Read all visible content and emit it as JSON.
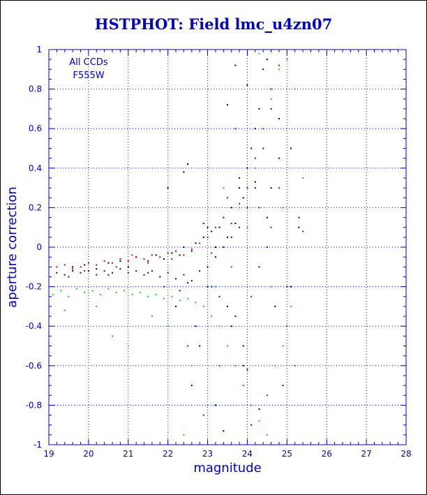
{
  "chart_data": {
    "type": "scatter",
    "title": "HSTPHOT: Field lmc_u4zn07",
    "xlabel": "magnitude",
    "ylabel": "aperture correction",
    "xlim": [
      19,
      28
    ],
    "ylim": [
      -1,
      1
    ],
    "x_ticks": [
      19,
      20,
      21,
      22,
      23,
      24,
      25,
      26,
      27,
      28
    ],
    "y_ticks": [
      -1,
      -0.8,
      -0.6,
      -0.4,
      -0.2,
      0,
      0.2,
      0.4,
      0.6,
      0.8,
      1
    ],
    "x_tick_labels": [
      "19",
      "20",
      "21",
      "22",
      "23",
      "24",
      "25",
      "26",
      "27",
      "28"
    ],
    "y_tick_labels": [
      "-1",
      "-0.8",
      "-0.6",
      "-0.4",
      "-0.2",
      "0",
      "0.2",
      "0.4",
      "0.6",
      "0.8",
      "1"
    ],
    "grid": true,
    "annotation": [
      "All CCDs",
      "F555W"
    ],
    "colors": {
      "axis": "#0000cc",
      "grid": "#0000cc",
      "title": "#0000cc",
      "series": [
        "#000000",
        "#cc0000",
        "#0000cc",
        "#00dd00"
      ]
    },
    "series": [
      {
        "color": "#000000",
        "points": [
          [
            19.6,
            -0.1
          ],
          [
            19.9,
            -0.09
          ],
          [
            20.2,
            -0.11
          ],
          [
            20.5,
            -0.08
          ],
          [
            20.8,
            -0.07
          ],
          [
            21.0,
            -0.1
          ],
          [
            21.2,
            -0.05
          ],
          [
            21.5,
            -0.07
          ],
          [
            21.7,
            -0.04
          ],
          [
            21.9,
            -0.06
          ],
          [
            22.1,
            -0.03
          ],
          [
            22.3,
            -0.04
          ],
          [
            22.4,
            0.0
          ],
          [
            22.6,
            -0.02
          ],
          [
            22.7,
            0.02
          ],
          [
            22.9,
            0.05
          ],
          [
            23.0,
            0.1
          ],
          [
            23.1,
            0.08
          ],
          [
            23.2,
            0.0
          ],
          [
            23.3,
            0.1
          ],
          [
            23.4,
            0.15
          ],
          [
            23.5,
            0.05
          ],
          [
            23.6,
            0.2
          ],
          [
            23.7,
            0.12
          ],
          [
            23.8,
            0.3
          ],
          [
            23.9,
            0.25
          ],
          [
            24.0,
            0.4
          ],
          [
            24.1,
            0.5
          ],
          [
            24.2,
            0.6
          ],
          [
            24.3,
            0.7
          ],
          [
            24.4,
            0.9
          ],
          [
            24.5,
            0.95
          ],
          [
            23.7,
            0.92
          ],
          [
            23.5,
            0.72
          ],
          [
            24.0,
            0.82
          ],
          [
            24.8,
            0.65
          ],
          [
            25.1,
            0.5
          ],
          [
            24.6,
            0.3
          ],
          [
            22.4,
            0.38
          ],
          [
            22.0,
            0.3
          ],
          [
            22.6,
            -0.7
          ],
          [
            23.2,
            -0.8
          ],
          [
            23.4,
            -0.93
          ],
          [
            23.9,
            -0.6
          ],
          [
            22.8,
            -0.5
          ],
          [
            24.3,
            -0.82
          ],
          [
            24.7,
            -0.3
          ],
          [
            25.3,
            0.1
          ],
          [
            22.2,
            -0.3
          ],
          [
            23.0,
            -0.2
          ],
          [
            24.2,
            0.33
          ],
          [
            24.5,
            0.15
          ],
          [
            22.5,
            0.42
          ],
          [
            25.1,
            -0.2
          ],
          [
            23.6,
            -0.4
          ]
        ]
      },
      {
        "color": "#cc0000",
        "points": [
          [
            19.2,
            -0.1
          ],
          [
            19.4,
            -0.09
          ],
          [
            19.6,
            -0.11
          ],
          [
            19.8,
            -0.1
          ],
          [
            20.0,
            -0.08
          ],
          [
            20.2,
            -0.09
          ],
          [
            20.4,
            -0.07
          ],
          [
            20.6,
            -0.08
          ],
          [
            20.8,
            -0.06
          ],
          [
            21.0,
            -0.07
          ],
          [
            21.2,
            -0.05
          ],
          [
            21.4,
            -0.06
          ],
          [
            21.6,
            -0.04
          ],
          [
            21.8,
            -0.05
          ],
          [
            22.0,
            -0.03
          ],
          [
            22.2,
            -0.02
          ],
          [
            22.4,
            -0.04
          ],
          [
            22.6,
            -0.01
          ],
          [
            22.8,
            0.02
          ],
          [
            23.0,
            0.05
          ],
          [
            23.2,
            0.1
          ],
          [
            23.4,
            0.15
          ],
          [
            23.6,
            0.12
          ],
          [
            23.8,
            0.22
          ],
          [
            24.0,
            0.3
          ],
          [
            24.2,
            0.45
          ],
          [
            24.4,
            0.6
          ],
          [
            24.6,
            0.8
          ],
          [
            24.8,
            0.92
          ],
          [
            23.5,
            0.25
          ],
          [
            23.9,
            -0.7
          ],
          [
            24.5,
            -0.75
          ],
          [
            25.0,
            -0.4
          ],
          [
            22.5,
            -0.5
          ],
          [
            23.3,
            -0.6
          ],
          [
            24.8,
            0.3
          ],
          [
            25.4,
            0.08
          ],
          [
            24.1,
            -0.25
          ],
          [
            23.7,
            0.6
          ],
          [
            19.9,
            -0.12
          ],
          [
            20.7,
            -0.1
          ],
          [
            21.5,
            -0.08
          ],
          [
            22.1,
            -0.06
          ],
          [
            23.1,
            -0.03
          ],
          [
            24.6,
            0.1
          ],
          [
            25.2,
            -0.6
          ],
          [
            22.9,
            -0.85
          ],
          [
            24.3,
            0.2
          ],
          [
            21.1,
            -0.04
          ],
          [
            23.6,
            -0.1
          ]
        ]
      },
      {
        "color": "#0000cc",
        "points": [
          [
            19.2,
            -0.13
          ],
          [
            19.4,
            -0.14
          ],
          [
            19.6,
            -0.12
          ],
          [
            19.8,
            -0.13
          ],
          [
            20.0,
            -0.12
          ],
          [
            20.2,
            -0.14
          ],
          [
            20.4,
            -0.12
          ],
          [
            20.6,
            -0.13
          ],
          [
            20.8,
            -0.11
          ],
          [
            21.0,
            -0.13
          ],
          [
            21.2,
            -0.12
          ],
          [
            21.4,
            -0.14
          ],
          [
            21.6,
            -0.12
          ],
          [
            21.8,
            -0.15
          ],
          [
            22.0,
            -0.13
          ],
          [
            22.2,
            -0.16
          ],
          [
            22.4,
            -0.14
          ],
          [
            22.6,
            -0.17
          ],
          [
            22.8,
            -0.12
          ],
          [
            23.0,
            -0.1
          ],
          [
            23.2,
            -0.05
          ],
          [
            23.4,
            0.0
          ],
          [
            23.6,
            0.05
          ],
          [
            23.8,
            0.1
          ],
          [
            24.0,
            0.2
          ],
          [
            24.2,
            0.3
          ],
          [
            24.4,
            0.5
          ],
          [
            24.6,
            0.7
          ],
          [
            23.5,
            -0.3
          ],
          [
            23.9,
            -0.5
          ],
          [
            24.1,
            -0.9
          ],
          [
            22.7,
            -0.4
          ],
          [
            23.3,
            -0.25
          ],
          [
            24.5,
            0.0
          ],
          [
            25.0,
            -0.2
          ],
          [
            24.8,
            0.45
          ],
          [
            19.5,
            -0.15
          ],
          [
            20.5,
            -0.14
          ],
          [
            21.5,
            -0.13
          ],
          [
            22.5,
            -0.18
          ],
          [
            23.1,
            -0.2
          ],
          [
            23.7,
            -0.35
          ],
          [
            24.3,
            -0.1
          ],
          [
            22.3,
            -0.22
          ],
          [
            21.9,
            -0.2
          ],
          [
            23.8,
            0.35
          ],
          [
            24.9,
            -0.7
          ],
          [
            25.3,
            0.15
          ],
          [
            22.9,
            0.12
          ],
          [
            24.0,
            -0.62
          ]
        ]
      },
      {
        "color": "#00dd00",
        "points": [
          [
            19.1,
            -0.24
          ],
          [
            19.3,
            -0.22
          ],
          [
            19.5,
            -0.25
          ],
          [
            19.7,
            -0.21
          ],
          [
            19.9,
            -0.23
          ],
          [
            20.1,
            -0.22
          ],
          [
            20.3,
            -0.24
          ],
          [
            20.5,
            -0.21
          ],
          [
            20.7,
            -0.23
          ],
          [
            20.9,
            -0.22
          ],
          [
            21.1,
            -0.24
          ],
          [
            21.3,
            -0.23
          ],
          [
            21.5,
            -0.25
          ],
          [
            21.7,
            -0.24
          ],
          [
            21.9,
            -0.26
          ],
          [
            22.1,
            -0.25
          ],
          [
            22.3,
            -0.27
          ],
          [
            22.5,
            -0.26
          ],
          [
            22.7,
            -0.28
          ],
          [
            22.9,
            -0.3
          ],
          [
            23.1,
            -0.35
          ],
          [
            23.3,
            -0.4
          ],
          [
            23.5,
            -0.5
          ],
          [
            23.7,
            -0.6
          ],
          [
            23.9,
            -0.7
          ],
          [
            24.1,
            -0.8
          ],
          [
            24.3,
            -0.88
          ],
          [
            24.5,
            -0.95
          ],
          [
            24.7,
            -0.6
          ],
          [
            24.9,
            -0.5
          ],
          [
            25.1,
            -0.3
          ],
          [
            24.2,
            0.4
          ],
          [
            24.4,
            0.6
          ],
          [
            24.6,
            0.75
          ],
          [
            24.8,
            0.9
          ],
          [
            25.0,
            0.95
          ],
          [
            24.3,
            0.98
          ],
          [
            23.8,
            0.2
          ],
          [
            24.0,
            0.1
          ],
          [
            23.6,
            -0.1
          ],
          [
            22.6,
            -0.6
          ],
          [
            22.4,
            -0.95
          ],
          [
            23.0,
            -0.8
          ],
          [
            20.6,
            -0.45
          ],
          [
            21.0,
            -0.5
          ],
          [
            19.4,
            -0.32
          ],
          [
            20.2,
            -0.3
          ],
          [
            21.6,
            -0.35
          ],
          [
            22.0,
            -0.4
          ],
          [
            25.2,
            0.8
          ],
          [
            25.4,
            0.35
          ],
          [
            24.6,
            -0.2
          ],
          [
            23.4,
            0.3
          ],
          [
            23.2,
            -0.2
          ],
          [
            24.9,
            0.2
          ]
        ]
      }
    ]
  }
}
